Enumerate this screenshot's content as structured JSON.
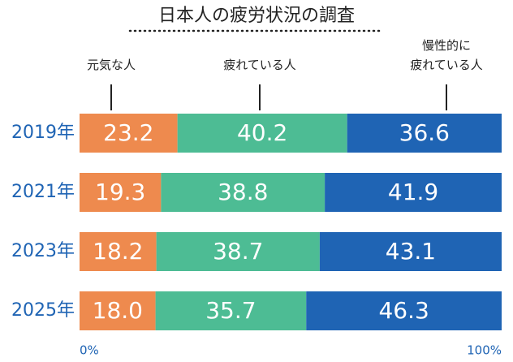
{
  "chart_data": {
    "type": "bar",
    "orientation": "horizontal",
    "stacked": true,
    "title": "日本人の疲労状況の調査",
    "categories": [
      "2019年",
      "2021年",
      "2023年",
      "2025年"
    ],
    "series": [
      {
        "name": "元気な人",
        "color": "#ee8a4e",
        "values": [
          23.2,
          19.3,
          18.2,
          18
        ],
        "value_labels": [
          "23.2",
          "19.3",
          "18.2",
          "18.0"
        ]
      },
      {
        "name": "疲れている人",
        "color": "#4dbc94",
        "values": [
          40.2,
          38.8,
          38.7,
          35.7
        ]
      },
      {
        "name": "慢性的に\n疲れている人",
        "color": "#1f64b4",
        "values": [
          36.6,
          41.9,
          43.1,
          46.3
        ]
      }
    ],
    "xlim": [
      0,
      100
    ],
    "xticks": [
      {
        "value": 0,
        "label": "0%"
      },
      {
        "value": 100,
        "label": "100%"
      }
    ],
    "grid": false
  }
}
